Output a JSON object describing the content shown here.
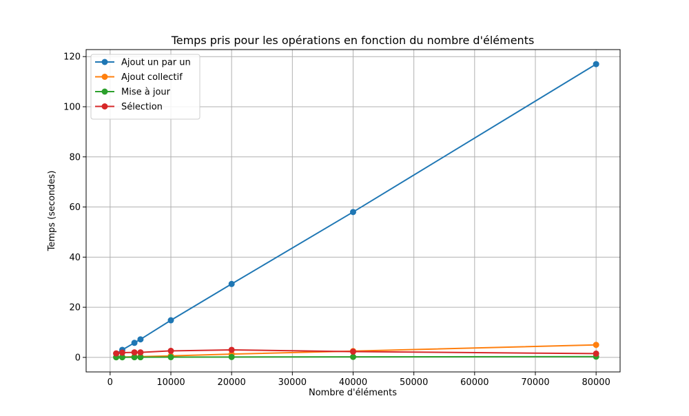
{
  "chart_data": {
    "type": "line",
    "title": "Temps pris pour les opérations en fonction du nombre d'éléments",
    "xlabel": "Nombre d'éléments",
    "ylabel": "Temps (secondes)",
    "xlim": [
      -3950,
      83950
    ],
    "ylim": [
      -5.8,
      122.8
    ],
    "xticks": [
      0,
      10000,
      20000,
      30000,
      40000,
      50000,
      60000,
      70000,
      80000
    ],
    "yticks": [
      0,
      20,
      40,
      60,
      80,
      100,
      120
    ],
    "grid": true,
    "legend_position": "top-left",
    "x": [
      1000,
      2000,
      4000,
      5000,
      10000,
      20000,
      40000,
      80000
    ],
    "series": [
      {
        "name": "Ajout un par un",
        "color": "#1f77b4",
        "values": [
          1.5,
          3.0,
          5.8,
          7.2,
          14.8,
          29.3,
          58.0,
          117.0
        ]
      },
      {
        "name": "Ajout collectif",
        "color": "#ff7f0e",
        "values": [
          0.1,
          0.15,
          0.25,
          0.3,
          0.6,
          1.3,
          2.5,
          5.0
        ]
      },
      {
        "name": "Mise à jour",
        "color": "#2ca02c",
        "values": [
          0.05,
          0.05,
          0.06,
          0.07,
          0.1,
          0.15,
          0.2,
          0.3
        ]
      },
      {
        "name": "Sélection",
        "color": "#d62728",
        "values": [
          1.6,
          1.9,
          2.0,
          2.0,
          2.6,
          3.0,
          2.3,
          1.5
        ]
      }
    ]
  }
}
